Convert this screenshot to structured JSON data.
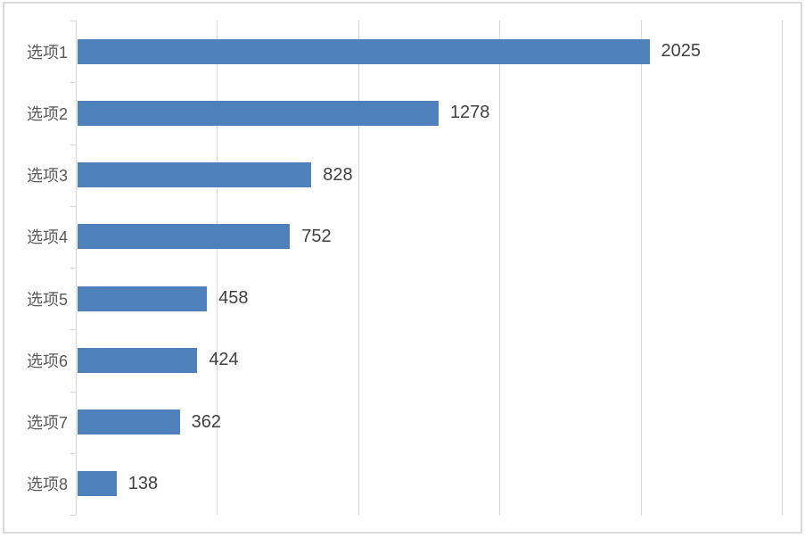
{
  "chart_data": {
    "type": "bar",
    "orientation": "horizontal",
    "title": "",
    "xlabel": "",
    "ylabel": "",
    "categories": [
      "选项1",
      "选项2",
      "选项3",
      "选项4",
      "选项5",
      "选项6",
      "选项7",
      "选项8"
    ],
    "values": [
      2025,
      1278,
      828,
      752,
      458,
      424,
      362,
      138
    ],
    "data_labels": [
      "2025",
      "1278",
      "828",
      "752",
      "458",
      "424",
      "362",
      "138"
    ],
    "xlim": [
      0,
      2500
    ],
    "grid_step": 500,
    "grid": true,
    "legend": false,
    "colors": {
      "bar": "#4E80BC",
      "gridline": "#D9D9D9",
      "axis": "#D9D9D9",
      "frame_border": "#D9D9D9",
      "category_label": "#595959",
      "value_label": "#404040",
      "background": "#FFFFFF"
    }
  }
}
